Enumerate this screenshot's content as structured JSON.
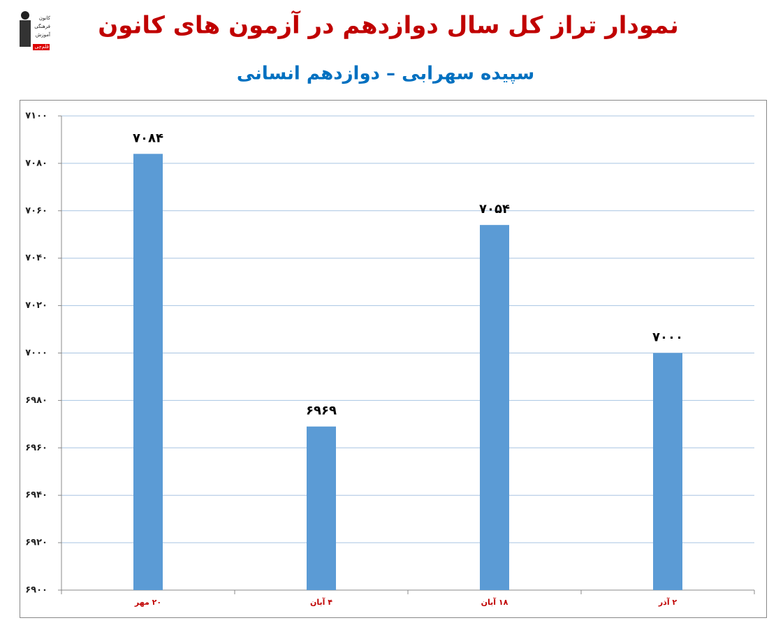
{
  "logo_text": [
    "کانون",
    "فرهنگی",
    "آموزش",
    "قلم‌چی"
  ],
  "chart_data": {
    "type": "bar",
    "title": "نمودار تراز کل سال دوازدهم در آزمون های کانون",
    "subtitle": "سپیده سهرابی – دوازدهم انسانی",
    "categories": [
      "۲۰ مهر",
      "۴ آبان",
      "۱۸ آبان",
      "۲ آذر"
    ],
    "values": [
      7084,
      6969,
      7054,
      7000
    ],
    "value_labels": [
      "۷۰۸۴",
      "۶۹۶۹",
      "۷۰۵۴",
      "۷۰۰۰"
    ],
    "color": "#5b9bd5",
    "ylim": [
      6900,
      7100
    ],
    "yticks": [
      {
        "value": 6900,
        "label": "۶۹۰۰"
      },
      {
        "value": 6920,
        "label": "۶۹۲۰"
      },
      {
        "value": 6940,
        "label": "۶۹۴۰"
      },
      {
        "value": 6960,
        "label": "۶۹۶۰"
      },
      {
        "value": 6980,
        "label": "۶۹۸۰"
      },
      {
        "value": 7000,
        "label": "۷۰۰۰"
      },
      {
        "value": 7020,
        "label": "۷۰۲۰"
      },
      {
        "value": 7040,
        "label": "۷۰۴۰"
      },
      {
        "value": 7060,
        "label": "۷۰۶۰"
      },
      {
        "value": 7080,
        "label": "۷۰۸۰"
      },
      {
        "value": 7100,
        "label": "۷۱۰۰"
      }
    ],
    "grid": true
  }
}
